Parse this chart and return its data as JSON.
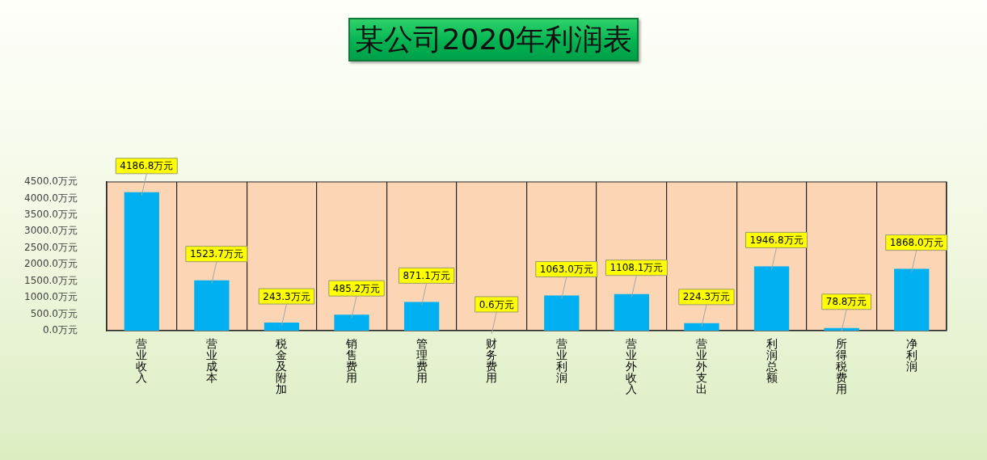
{
  "chart_data": {
    "type": "bar",
    "title": "某公司2020年利润表",
    "categories": [
      "营业收入",
      "营业成本",
      "税金及附加",
      "销售费用",
      "管理费用",
      "财务费用",
      "营业利润",
      "营业外收入",
      "营业外支出",
      "利润总额",
      "所得税费用",
      "净利润"
    ],
    "values": [
      4186.8,
      1523.7,
      243.3,
      485.2,
      871.1,
      0.6,
      1063.0,
      1108.1,
      224.3,
      1946.8,
      78.8,
      1868.0
    ],
    "value_labels": [
      "4186.8万元",
      "1523.7万元",
      "243.3万元",
      "485.2万元",
      "871.1万元",
      "0.6万元",
      "1063.0万元",
      "1108.1万元",
      "224.3万元",
      "1946.8万元",
      "78.8万元",
      "1868.0万元"
    ],
    "color": "#00b0f0",
    "ylim": [
      0,
      4500
    ],
    "yticks": [
      {
        "value": 0,
        "label": "0.0万元"
      },
      {
        "value": 500,
        "label": "500.0万元"
      },
      {
        "value": 1000,
        "label": "1000.0万元"
      },
      {
        "value": 1500,
        "label": "1500.0万元"
      },
      {
        "value": 2000,
        "label": "2000.0万元"
      },
      {
        "value": 2500,
        "label": "2500.0万元"
      },
      {
        "value": 3000,
        "label": "3000.0万元"
      },
      {
        "value": 3500,
        "label": "3500.0万元"
      },
      {
        "value": 4000,
        "label": "4000.0万元"
      },
      {
        "value": 4500,
        "label": "4500.0万元"
      }
    ],
    "grid": "x",
    "legend": false
  }
}
